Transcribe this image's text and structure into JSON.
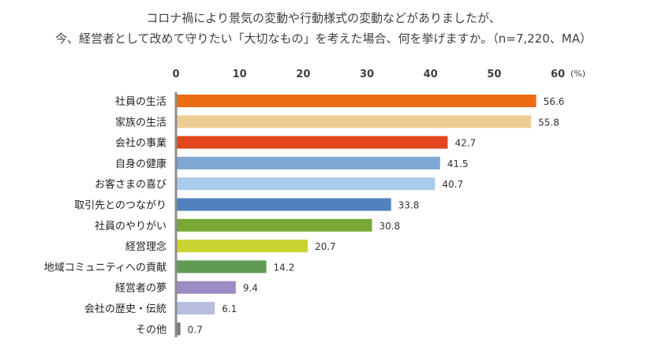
{
  "title_lines": [
    "コロナ禍により景気の変動や行動様式の変動などがありましたが、",
    "今、経営者として改めて守りたい「大切なもの」を考えた場合、何を挙げますか。（n=7,220、MA）"
  ],
  "chart_data": {
    "type": "bar",
    "orientation": "horizontal",
    "unit_label": "(%)",
    "xlim": [
      0,
      60
    ],
    "ticks": [
      0,
      10,
      20,
      30,
      40,
      50,
      60
    ],
    "grid": false,
    "categories": [
      "社員の生活",
      "家族の生活",
      "会社の事業",
      "自身の健康",
      "お客さまの喜び",
      "取引先とのつながり",
      "社員のやりがい",
      "経営理念",
      "地域コミュニティへの貢献",
      "経営者の夢",
      "会社の歴史・伝統",
      "その他"
    ],
    "values": [
      56.6,
      55.8,
      42.7,
      41.5,
      40.7,
      33.8,
      30.8,
      20.7,
      14.2,
      9.4,
      6.1,
      0.7
    ],
    "value_labels": [
      "56.6",
      "55.8",
      "42.7",
      "41.5",
      "40.7",
      "33.8",
      "30.8",
      "20.7",
      "14.2",
      "9.4",
      "6.1",
      "0.7"
    ],
    "colors": [
      "#ED6B12",
      "#EDCD93",
      "#E2461C",
      "#7EA7D6",
      "#A9CCEC",
      "#4F82BE",
      "#77A736",
      "#C9D22E",
      "#5F9B55",
      "#9A8CC4",
      "#B9BEE0",
      "#7A7A7A"
    ]
  }
}
